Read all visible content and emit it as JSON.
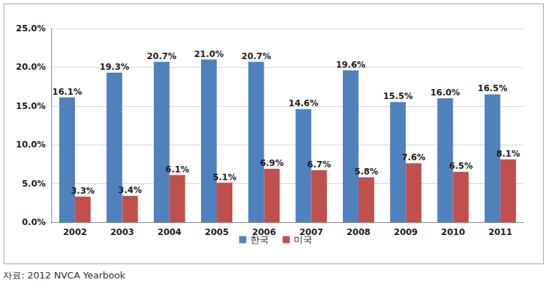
{
  "chart_data": {
    "type": "bar",
    "source": "자료: 2012 NVCA Yearbook",
    "categories": [
      "2002",
      "2003",
      "2004",
      "2005",
      "2006",
      "2007",
      "2008",
      "2009",
      "2010",
      "2011"
    ],
    "series": [
      {
        "name": "한국",
        "color": "#4f81bd",
        "values": [
          16.1,
          19.3,
          20.7,
          21.0,
          20.7,
          14.6,
          19.6,
          15.5,
          16.0,
          16.5
        ],
        "value_labels": [
          "16.1%",
          "19.3%",
          "20.7%",
          "21.0%",
          "20.7%",
          "14.6%",
          "19.6%",
          "15.5%",
          "16.0%",
          "16.5%"
        ]
      },
      {
        "name": "미국",
        "color": "#c0504d",
        "values": [
          3.3,
          3.4,
          6.1,
          5.1,
          6.9,
          6.7,
          5.8,
          7.6,
          6.5,
          8.1
        ],
        "value_labels": [
          "3.3%",
          "3.4%",
          "6.1%",
          "5.1%",
          "6.9%",
          "6.7%",
          "5.8%",
          "7.6%",
          "6.5%",
          "8.1%"
        ]
      }
    ],
    "ylim": [
      0,
      25
    ],
    "yticks": [
      {
        "value": 0,
        "label": "0.0%"
      },
      {
        "value": 5,
        "label": "5.0%"
      },
      {
        "value": 10,
        "label": "10.0%"
      },
      {
        "value": 15,
        "label": "15.0%"
      },
      {
        "value": 20,
        "label": "20.0%"
      },
      {
        "value": 25,
        "label": "25.0%"
      }
    ],
    "grid": true,
    "legend": "bottom",
    "data_labels": true
  }
}
